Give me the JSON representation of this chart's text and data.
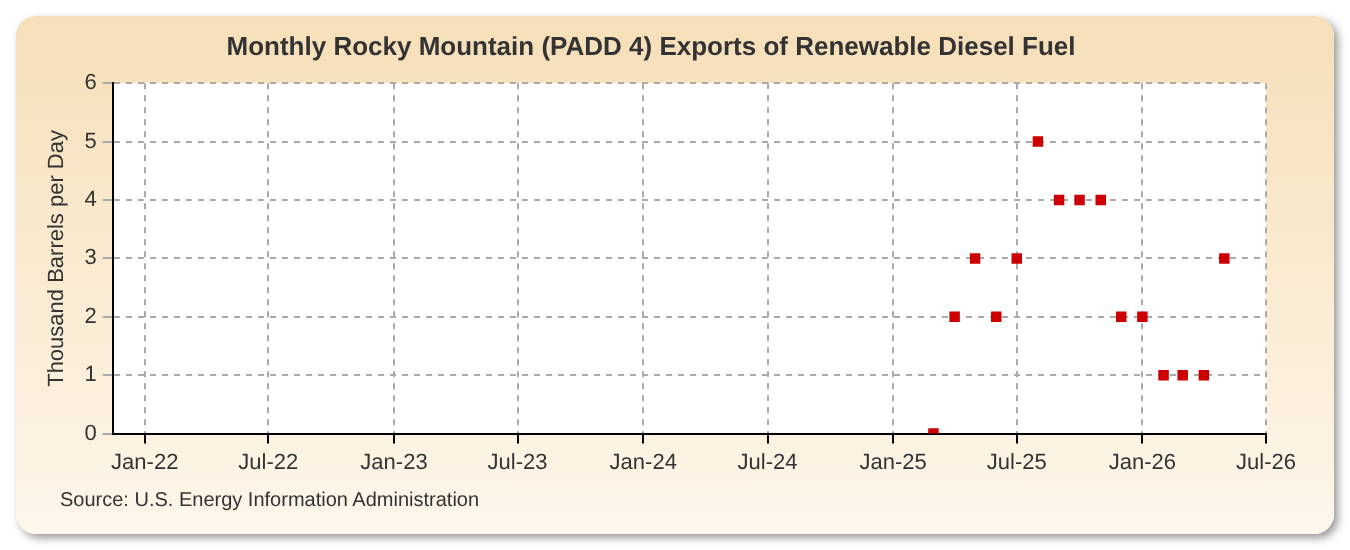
{
  "chart_data": {
    "type": "scatter",
    "title": "Monthly Rocky Mountain (PADD 4) Exports of Renewable Diesel Fuel",
    "ylabel": "Thousand Barrels per Day",
    "x": [
      "2025-03",
      "2025-04",
      "2025-05",
      "2025-06",
      "2025-07",
      "2025-08",
      "2025-09",
      "2025-10",
      "2025-11",
      "2025-12",
      "2026-01",
      "2026-02",
      "2026-03",
      "2026-04",
      "2026-05"
    ],
    "series": [
      {
        "color": "#cc0000",
        "values": [
          0,
          2,
          3,
          2,
          3,
          5,
          4,
          4,
          4,
          2,
          2,
          1,
          1,
          1,
          3
        ]
      }
    ],
    "xlim": [
      "2021-11-15",
      "2026-07-01"
    ],
    "xticks": [
      {
        "value": "2022-01",
        "label": "Jan-22"
      },
      {
        "value": "2022-07",
        "label": "Jul-22"
      },
      {
        "value": "2023-01",
        "label": "Jan-23"
      },
      {
        "value": "2023-07",
        "label": "Jul-23"
      },
      {
        "value": "2024-01",
        "label": "Jan-24"
      },
      {
        "value": "2024-07",
        "label": "Jul-24"
      },
      {
        "value": "2025-01",
        "label": "Jan-25"
      },
      {
        "value": "2025-07",
        "label": "Jul-25"
      },
      {
        "value": "2026-01",
        "label": "Jan-26"
      },
      {
        "value": "2026-07",
        "label": "Jul-26"
      }
    ],
    "ylim": [
      0,
      6
    ],
    "yticks": [
      0,
      1,
      2,
      3,
      4,
      5,
      6
    ],
    "grid": true,
    "legend": false,
    "marker": "square",
    "annotations": [
      "Source: U.S. Energy Information Administration"
    ]
  }
}
